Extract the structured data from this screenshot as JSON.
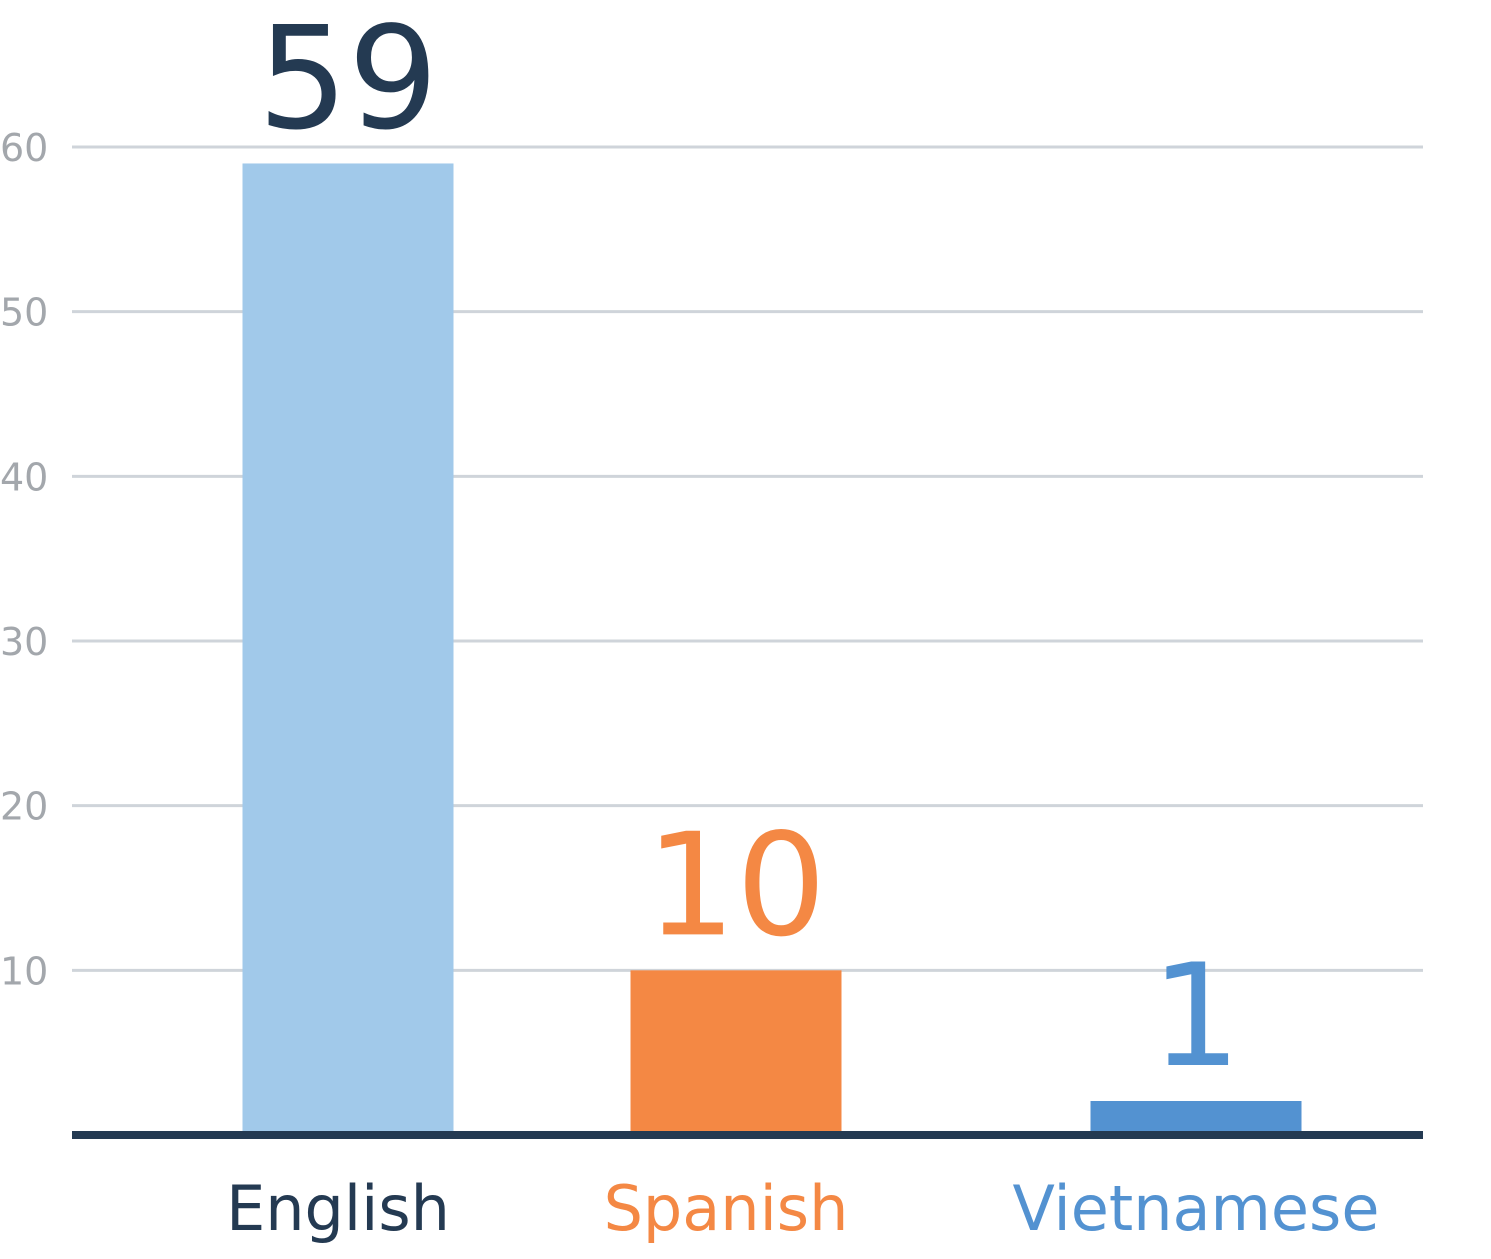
{
  "chart_data": {
    "type": "bar",
    "title": "",
    "xlabel": "",
    "ylabel": "",
    "categories": [
      "English",
      "Spanish",
      "Vietnamese"
    ],
    "values": [
      59,
      10,
      1
    ],
    "value_labels": [
      "59",
      "10",
      "1"
    ],
    "ylim": [
      0,
      60
    ],
    "yticks": [
      10,
      20,
      30,
      40,
      50,
      60
    ],
    "ytick_labels": [
      "10",
      "20",
      "30",
      "40",
      "50",
      "60"
    ],
    "grid": true,
    "legend": "none",
    "colors": {
      "bars": [
        "#a1c9ea",
        "#f48844",
        "#5392d1"
      ],
      "category_labels": [
        "#243a52",
        "#f48844",
        "#5392d1"
      ],
      "value_labels": [
        "#243a52",
        "#f48844",
        "#5392d1"
      ],
      "gridline": "#cfd4da",
      "baseline": "#243a52",
      "tick_labels": "#a3a7ac"
    }
  }
}
